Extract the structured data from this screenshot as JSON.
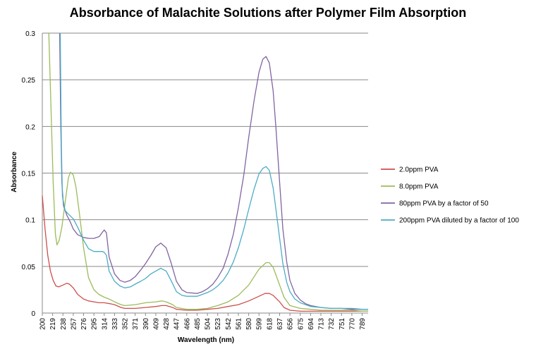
{
  "chart_data": {
    "type": "line",
    "title": "Absorbance of Malachite Solutions after Polymer Film Absorption",
    "xlabel": "Wavelength (nm)",
    "ylabel": "Absorbance",
    "xlim": [
      200,
      800
    ],
    "ylim": [
      0,
      0.3
    ],
    "y_ticks": [
      "0",
      "0.05",
      "0.1",
      "0.15",
      "0.2",
      "0.25",
      "0.3"
    ],
    "x_ticks": [
      "200",
      "219",
      "238",
      "257",
      "276",
      "295",
      "314",
      "333",
      "352",
      "371",
      "390",
      "409",
      "428",
      "447",
      "466",
      "485",
      "504",
      "523",
      "542",
      "561",
      "580",
      "599",
      "618",
      "637",
      "656",
      "675",
      "694",
      "713",
      "732",
      "751",
      "770",
      "789"
    ],
    "grid": "horizontal",
    "legend_position": "right",
    "series": [
      {
        "name": "2.0ppm PVA",
        "color": "#cd4f4c",
        "points": [
          [
            200,
            0.126
          ],
          [
            205,
            0.09
          ],
          [
            210,
            0.062
          ],
          [
            215,
            0.045
          ],
          [
            220,
            0.035
          ],
          [
            225,
            0.029
          ],
          [
            230,
            0.028
          ],
          [
            238,
            0.03
          ],
          [
            245,
            0.032
          ],
          [
            250,
            0.031
          ],
          [
            257,
            0.027
          ],
          [
            265,
            0.02
          ],
          [
            276,
            0.015
          ],
          [
            285,
            0.013
          ],
          [
            295,
            0.012
          ],
          [
            305,
            0.011
          ],
          [
            314,
            0.011
          ],
          [
            325,
            0.01
          ],
          [
            333,
            0.009
          ],
          [
            345,
            0.006
          ],
          [
            352,
            0.005
          ],
          [
            371,
            0.005
          ],
          [
            390,
            0.006
          ],
          [
            409,
            0.007
          ],
          [
            420,
            0.008
          ],
          [
            428,
            0.008
          ],
          [
            440,
            0.006
          ],
          [
            447,
            0.004
          ],
          [
            466,
            0.003
          ],
          [
            485,
            0.003
          ],
          [
            504,
            0.004
          ],
          [
            523,
            0.005
          ],
          [
            542,
            0.007
          ],
          [
            561,
            0.009
          ],
          [
            580,
            0.013
          ],
          [
            599,
            0.018
          ],
          [
            610,
            0.021
          ],
          [
            618,
            0.021
          ],
          [
            625,
            0.019
          ],
          [
            637,
            0.012
          ],
          [
            645,
            0.006
          ],
          [
            656,
            0.003
          ],
          [
            675,
            0.002
          ],
          [
            694,
            0.002
          ],
          [
            713,
            0.002
          ],
          [
            732,
            0.002
          ],
          [
            751,
            0.002
          ],
          [
            770,
            0.002
          ],
          [
            789,
            0.002
          ],
          [
            800,
            0.002
          ]
        ]
      },
      {
        "name": "8.0ppm PVA",
        "color": "#9bbb59",
        "points": [
          [
            212,
            0.3
          ],
          [
            216,
            0.22
          ],
          [
            220,
            0.14
          ],
          [
            224,
            0.085
          ],
          [
            227,
            0.073
          ],
          [
            231,
            0.078
          ],
          [
            236,
            0.092
          ],
          [
            242,
            0.118
          ],
          [
            248,
            0.145
          ],
          [
            252,
            0.151
          ],
          [
            257,
            0.148
          ],
          [
            262,
            0.135
          ],
          [
            268,
            0.108
          ],
          [
            276,
            0.07
          ],
          [
            285,
            0.038
          ],
          [
            295,
            0.025
          ],
          [
            304,
            0.02
          ],
          [
            314,
            0.017
          ],
          [
            323,
            0.015
          ],
          [
            333,
            0.012
          ],
          [
            345,
            0.009
          ],
          [
            352,
            0.008
          ],
          [
            371,
            0.009
          ],
          [
            390,
            0.011
          ],
          [
            409,
            0.012
          ],
          [
            420,
            0.013
          ],
          [
            428,
            0.012
          ],
          [
            440,
            0.009
          ],
          [
            447,
            0.006
          ],
          [
            466,
            0.004
          ],
          [
            485,
            0.004
          ],
          [
            504,
            0.005
          ],
          [
            523,
            0.008
          ],
          [
            542,
            0.012
          ],
          [
            561,
            0.019
          ],
          [
            580,
            0.03
          ],
          [
            599,
            0.047
          ],
          [
            612,
            0.054
          ],
          [
            618,
            0.054
          ],
          [
            625,
            0.049
          ],
          [
            637,
            0.03
          ],
          [
            645,
            0.017
          ],
          [
            656,
            0.008
          ],
          [
            675,
            0.005
          ],
          [
            694,
            0.004
          ],
          [
            713,
            0.003
          ],
          [
            732,
            0.003
          ],
          [
            751,
            0.003
          ],
          [
            770,
            0.003
          ],
          [
            789,
            0.002
          ],
          [
            800,
            0.002
          ]
        ]
      },
      {
        "name": "80ppm PVA by a factor of 50",
        "color": "#8064a2",
        "points": [
          [
            232,
            0.3
          ],
          [
            234,
            0.2
          ],
          [
            236,
            0.14
          ],
          [
            239,
            0.115
          ],
          [
            245,
            0.105
          ],
          [
            252,
            0.097
          ],
          [
            257,
            0.09
          ],
          [
            265,
            0.084
          ],
          [
            276,
            0.081
          ],
          [
            286,
            0.08
          ],
          [
            295,
            0.08
          ],
          [
            305,
            0.082
          ],
          [
            311,
            0.087
          ],
          [
            314,
            0.089
          ],
          [
            318,
            0.086
          ],
          [
            323,
            0.06
          ],
          [
            333,
            0.042
          ],
          [
            343,
            0.035
          ],
          [
            352,
            0.033
          ],
          [
            362,
            0.035
          ],
          [
            371,
            0.039
          ],
          [
            381,
            0.046
          ],
          [
            390,
            0.053
          ],
          [
            400,
            0.062
          ],
          [
            409,
            0.071
          ],
          [
            418,
            0.075
          ],
          [
            428,
            0.07
          ],
          [
            437,
            0.054
          ],
          [
            447,
            0.034
          ],
          [
            457,
            0.025
          ],
          [
            466,
            0.022
          ],
          [
            485,
            0.021
          ],
          [
            495,
            0.023
          ],
          [
            504,
            0.026
          ],
          [
            514,
            0.031
          ],
          [
            523,
            0.038
          ],
          [
            533,
            0.048
          ],
          [
            542,
            0.063
          ],
          [
            552,
            0.085
          ],
          [
            561,
            0.113
          ],
          [
            571,
            0.148
          ],
          [
            580,
            0.188
          ],
          [
            590,
            0.228
          ],
          [
            599,
            0.258
          ],
          [
            606,
            0.272
          ],
          [
            612,
            0.275
          ],
          [
            618,
            0.268
          ],
          [
            625,
            0.238
          ],
          [
            630,
            0.2
          ],
          [
            637,
            0.14
          ],
          [
            643,
            0.09
          ],
          [
            650,
            0.055
          ],
          [
            656,
            0.035
          ],
          [
            665,
            0.021
          ],
          [
            675,
            0.014
          ],
          [
            685,
            0.01
          ],
          [
            694,
            0.008
          ],
          [
            713,
            0.006
          ],
          [
            732,
            0.005
          ],
          [
            751,
            0.005
          ],
          [
            770,
            0.004
          ],
          [
            789,
            0.004
          ],
          [
            800,
            0.004
          ]
        ]
      },
      {
        "name": "200ppm PVA diluted by a factor of 100",
        "color": "#4bacc6",
        "points": [
          [
            233,
            0.3
          ],
          [
            235,
            0.18
          ],
          [
            237,
            0.125
          ],
          [
            242,
            0.11
          ],
          [
            248,
            0.106
          ],
          [
            257,
            0.101
          ],
          [
            266,
            0.091
          ],
          [
            276,
            0.078
          ],
          [
            285,
            0.069
          ],
          [
            295,
            0.066
          ],
          [
            305,
            0.066
          ],
          [
            311,
            0.066
          ],
          [
            314,
            0.065
          ],
          [
            318,
            0.062
          ],
          [
            323,
            0.045
          ],
          [
            333,
            0.034
          ],
          [
            343,
            0.029
          ],
          [
            352,
            0.027
          ],
          [
            362,
            0.028
          ],
          [
            371,
            0.031
          ],
          [
            381,
            0.034
          ],
          [
            390,
            0.037
          ],
          [
            400,
            0.042
          ],
          [
            409,
            0.045
          ],
          [
            418,
            0.048
          ],
          [
            428,
            0.045
          ],
          [
            437,
            0.035
          ],
          [
            447,
            0.023
          ],
          [
            457,
            0.019
          ],
          [
            466,
            0.018
          ],
          [
            485,
            0.018
          ],
          [
            495,
            0.02
          ],
          [
            504,
            0.022
          ],
          [
            514,
            0.025
          ],
          [
            523,
            0.029
          ],
          [
            533,
            0.035
          ],
          [
            542,
            0.043
          ],
          [
            552,
            0.055
          ],
          [
            561,
            0.07
          ],
          [
            571,
            0.09
          ],
          [
            580,
            0.111
          ],
          [
            590,
            0.133
          ],
          [
            599,
            0.149
          ],
          [
            606,
            0.155
          ],
          [
            612,
            0.157
          ],
          [
            618,
            0.153
          ],
          [
            625,
            0.134
          ],
          [
            630,
            0.112
          ],
          [
            637,
            0.08
          ],
          [
            643,
            0.053
          ],
          [
            650,
            0.033
          ],
          [
            656,
            0.023
          ],
          [
            665,
            0.015
          ],
          [
            675,
            0.011
          ],
          [
            685,
            0.009
          ],
          [
            694,
            0.007
          ],
          [
            713,
            0.006
          ],
          [
            732,
            0.005
          ],
          [
            751,
            0.005
          ],
          [
            770,
            0.005
          ],
          [
            789,
            0.004
          ],
          [
            800,
            0.004
          ]
        ]
      }
    ]
  }
}
